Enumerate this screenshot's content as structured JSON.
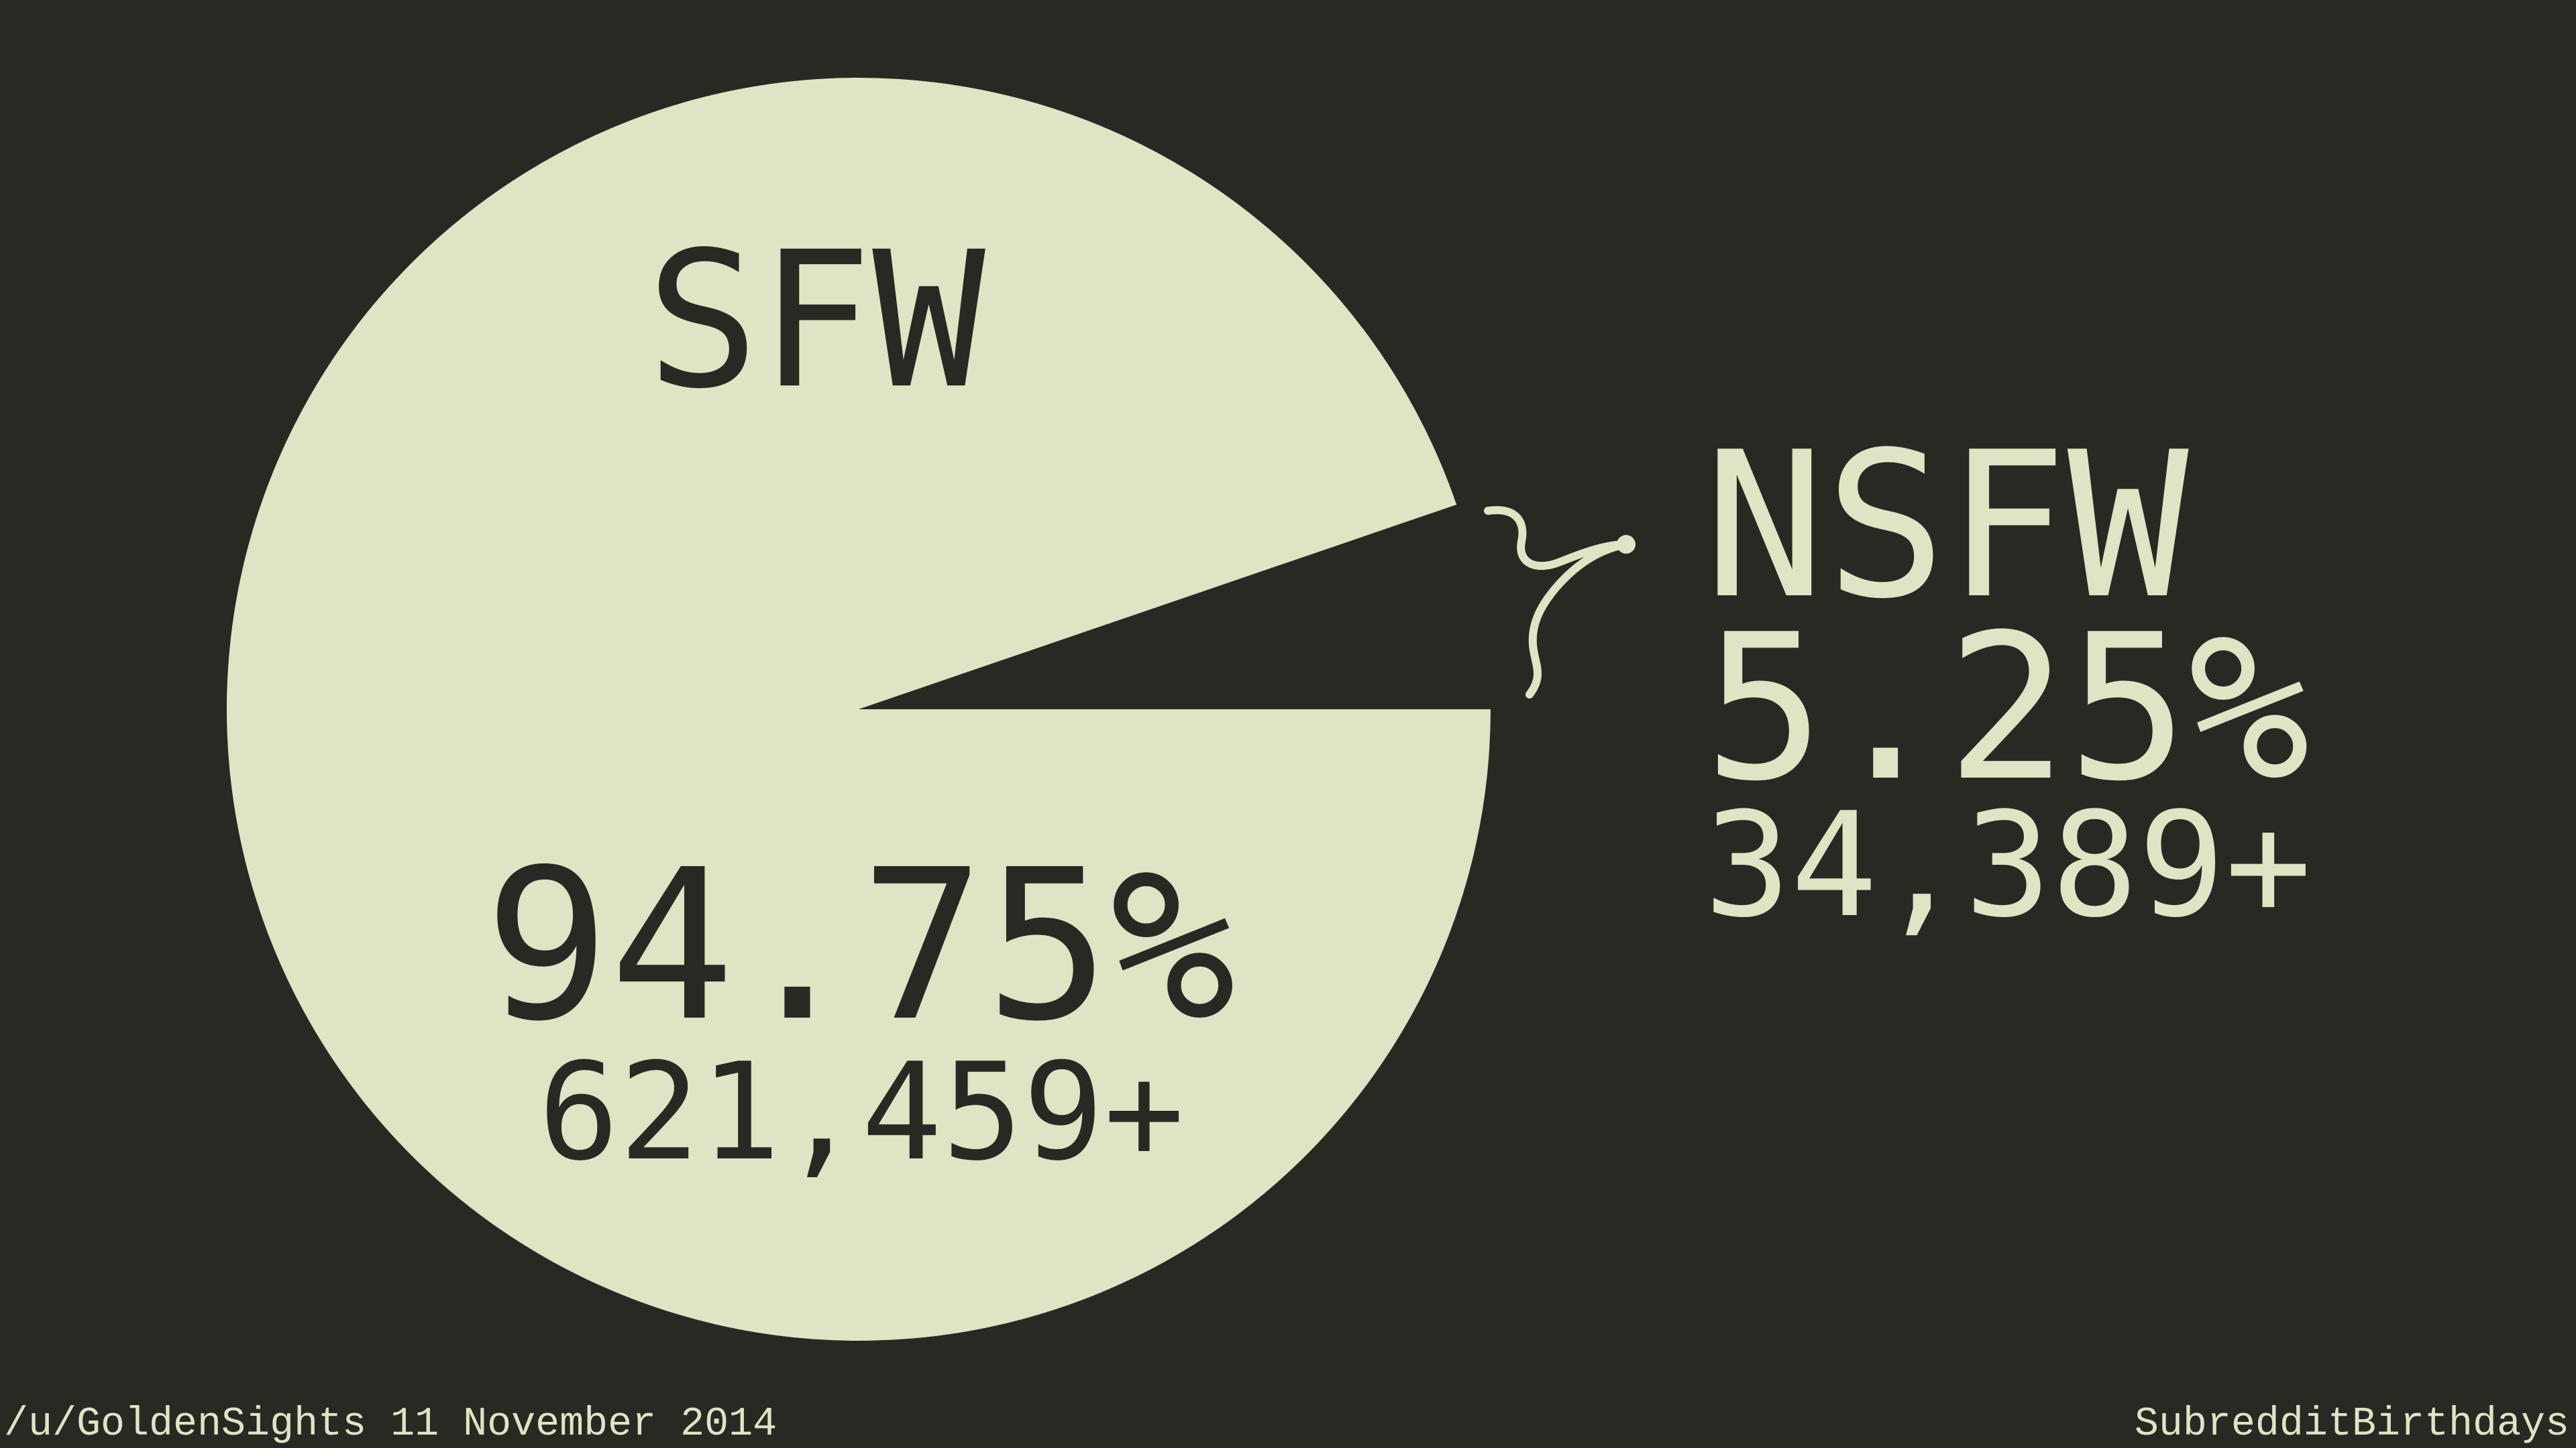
{
  "colors": {
    "background": "#282923",
    "pie": "#dfe4c4",
    "dark_text": "#282923",
    "light_text": "#dfe4c4"
  },
  "chart_data": {
    "type": "pie",
    "start_angle_deg": 0,
    "direction": "counterclockwise",
    "slices": [
      {
        "label": "NSFW",
        "percent": 5.25,
        "percent_label": "5.25%",
        "count_label": "34,389+",
        "value": 34389,
        "exploded": true
      },
      {
        "label": "SFW",
        "percent": 94.75,
        "percent_label": "94.75%",
        "count_label": "621,459+",
        "value": 621459,
        "exploded": false
      }
    ]
  },
  "footer": {
    "left": "/u/GoldenSights 11 November 2014",
    "right": "SubredditBirthdays"
  }
}
